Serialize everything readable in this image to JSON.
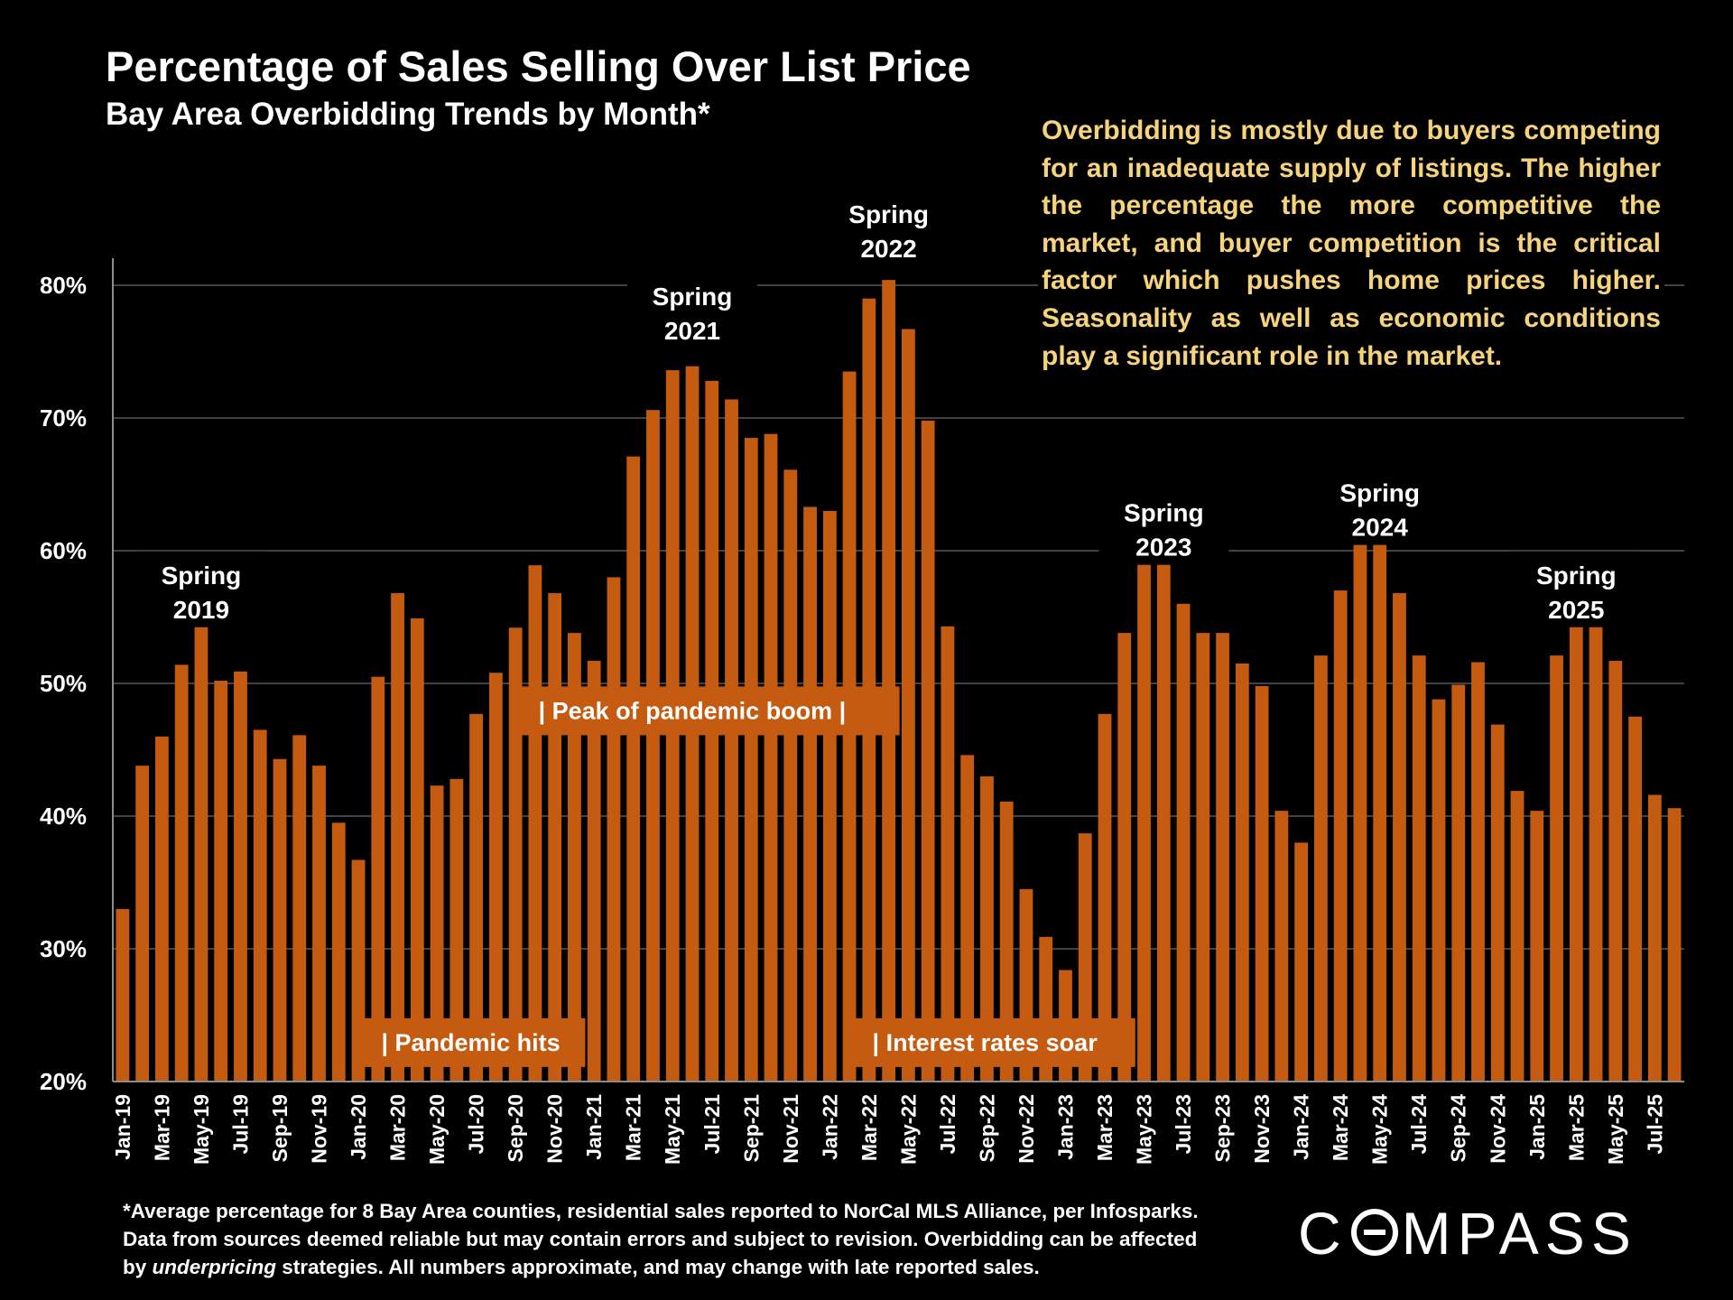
{
  "header": {
    "title": "Percentage of Sales Selling Over List Price",
    "subtitle": "Bay Area Overbidding Trends by Month*"
  },
  "blurb": "Overbidding is mostly due to buyers competing for an inadequate supply of listings. The higher the percentage the more competitive the market, and buyer competition is the critical factor which pushes home prices higher. Seasonality as well as economic conditions play a significant role in the market.",
  "footnote": {
    "line1": "*Average percentage for 8 Bay Area counties, residential sales reported to NorCal MLS Alliance, per Infosparks.",
    "line2": "Data from sources deemed reliable but may contain errors and subject to revision. Overbidding can be affected",
    "line3_pre": "by ",
    "line3_italic": "underpricing",
    "line3_post": " strategies. All numbers approximate, and may change with late reported sales."
  },
  "logo": {
    "pre": "C",
    "post": "MPASS"
  },
  "colors": {
    "bar": "#c55a11",
    "blurb": "#f6d37d",
    "grid": "#595959",
    "background": "#000000"
  },
  "chart_data": {
    "type": "bar",
    "title": "Percentage of Sales Selling Over List Price",
    "subtitle": "Bay Area Overbidding Trends by Month*",
    "xlabel": "",
    "ylabel": "",
    "ylim": [
      20,
      80
    ],
    "yticks": [
      "20%",
      "30%",
      "40%",
      "50%",
      "60%",
      "70%",
      "80%"
    ],
    "ytick_values": [
      20,
      30,
      40,
      50,
      60,
      70,
      80
    ],
    "grid": true,
    "legend": "none",
    "categories": [
      "Jan-19",
      "Feb-19",
      "Mar-19",
      "Apr-19",
      "May-19",
      "Jun-19",
      "Jul-19",
      "Aug-19",
      "Sep-19",
      "Oct-19",
      "Nov-19",
      "Dec-19",
      "Jan-20",
      "Feb-20",
      "Mar-20",
      "Apr-20",
      "May-20",
      "Jun-20",
      "Jul-20",
      "Aug-20",
      "Sep-20",
      "Oct-20",
      "Nov-20",
      "Dec-20",
      "Jan-21",
      "Feb-21",
      "Mar-21",
      "Apr-21",
      "May-21",
      "Jun-21",
      "Jul-21",
      "Aug-21",
      "Sep-21",
      "Oct-21",
      "Nov-21",
      "Dec-21",
      "Jan-22",
      "Feb-22",
      "Mar-22",
      "Apr-22",
      "May-22",
      "Jun-22",
      "Jul-22",
      "Aug-22",
      "Sep-22",
      "Oct-22",
      "Nov-22",
      "Dec-22",
      "Jan-23",
      "Feb-23",
      "Mar-23",
      "Apr-23",
      "May-23",
      "Jun-23",
      "Jul-23",
      "Aug-23",
      "Sep-23",
      "Oct-23",
      "Nov-23",
      "Dec-23",
      "Jan-24",
      "Feb-24",
      "Mar-24",
      "Apr-24",
      "May-24",
      "Jun-24",
      "Jul-24",
      "Aug-24",
      "Sep-24",
      "Oct-24",
      "Nov-24",
      "Dec-24",
      "Jan-25",
      "Feb-25",
      "Mar-25",
      "Apr-25",
      "May-25",
      "Jun-25",
      "Jul-25",
      "Aug-25"
    ],
    "shown_tick_labels": [
      "Jan-19",
      "Mar-19",
      "May-19",
      "Jul-19",
      "Sep-19",
      "Nov-19",
      "Jan-20",
      "Mar-20",
      "May-20",
      "Jul-20",
      "Sep-20",
      "Nov-20",
      "Jan-21",
      "Mar-21",
      "May-21",
      "Jul-21",
      "Sep-21",
      "Nov-21",
      "Jan-22",
      "Mar-22",
      "May-22",
      "Jul-22",
      "Sep-22",
      "Nov-22",
      "Jan-23",
      "Mar-23",
      "May-23",
      "Jul-23",
      "Sep-23",
      "Nov-23",
      "Jan-24",
      "Mar-24",
      "May-24",
      "Jul-24",
      "Sep-24",
      "Nov-24",
      "Jan-25",
      "Mar-25",
      "May-25",
      "Jul-25"
    ],
    "values": [
      33.0,
      43.8,
      46.0,
      51.4,
      55.1,
      50.2,
      50.9,
      46.5,
      44.3,
      46.1,
      43.8,
      39.5,
      36.7,
      50.5,
      56.8,
      54.9,
      42.3,
      42.8,
      47.7,
      50.8,
      54.2,
      58.9,
      56.8,
      53.8,
      51.7,
      58.0,
      67.1,
      70.6,
      73.6,
      73.9,
      72.8,
      71.4,
      68.5,
      68.8,
      66.1,
      63.3,
      63.0,
      73.5,
      79.0,
      80.4,
      76.7,
      69.8,
      54.3,
      44.6,
      43.0,
      41.1,
      34.5,
      30.9,
      28.4,
      38.7,
      47.7,
      53.8,
      59.2,
      59.2,
      56.0,
      53.8,
      53.8,
      51.5,
      49.8,
      40.4,
      38.0,
      52.1,
      57.0,
      60.6,
      61.0,
      56.8,
      52.1,
      48.8,
      49.9,
      51.6,
      46.9,
      41.9,
      40.4,
      52.1,
      54.8,
      54.5,
      51.7,
      47.5,
      41.6,
      40.6
    ],
    "annotations": [
      {
        "line1": "Spring",
        "line2": "2019",
        "at": "May-19",
        "level": 57.5
      },
      {
        "line1": "Spring",
        "line2": "2021",
        "at": "Jun-21",
        "level": 78.5
      },
      {
        "line1": "Spring",
        "line2": "2022",
        "at": "Apr-22",
        "level": 84.7
      },
      {
        "line1": "Spring",
        "line2": "2023",
        "at": "Jun-23",
        "level": 62.2
      },
      {
        "line1": "Spring",
        "line2": "2024",
        "at": "May-24",
        "level": 63.7
      },
      {
        "line1": "Spring",
        "line2": "2025",
        "at": "Mar-25",
        "level": 57.5
      }
    ],
    "event_labels": [
      {
        "text": "| Pandemic hits",
        "from": "Feb-20",
        "to": "Dec-20",
        "level": 23.0
      },
      {
        "text": "|  Peak of pandemic boom  |",
        "from": "Oct-20",
        "to": "Apr-22",
        "level": 48.0
      },
      {
        "text": "| Interest rates soar",
        "from": "Mar-22",
        "to": "Apr-23",
        "level": 23.0
      }
    ]
  }
}
